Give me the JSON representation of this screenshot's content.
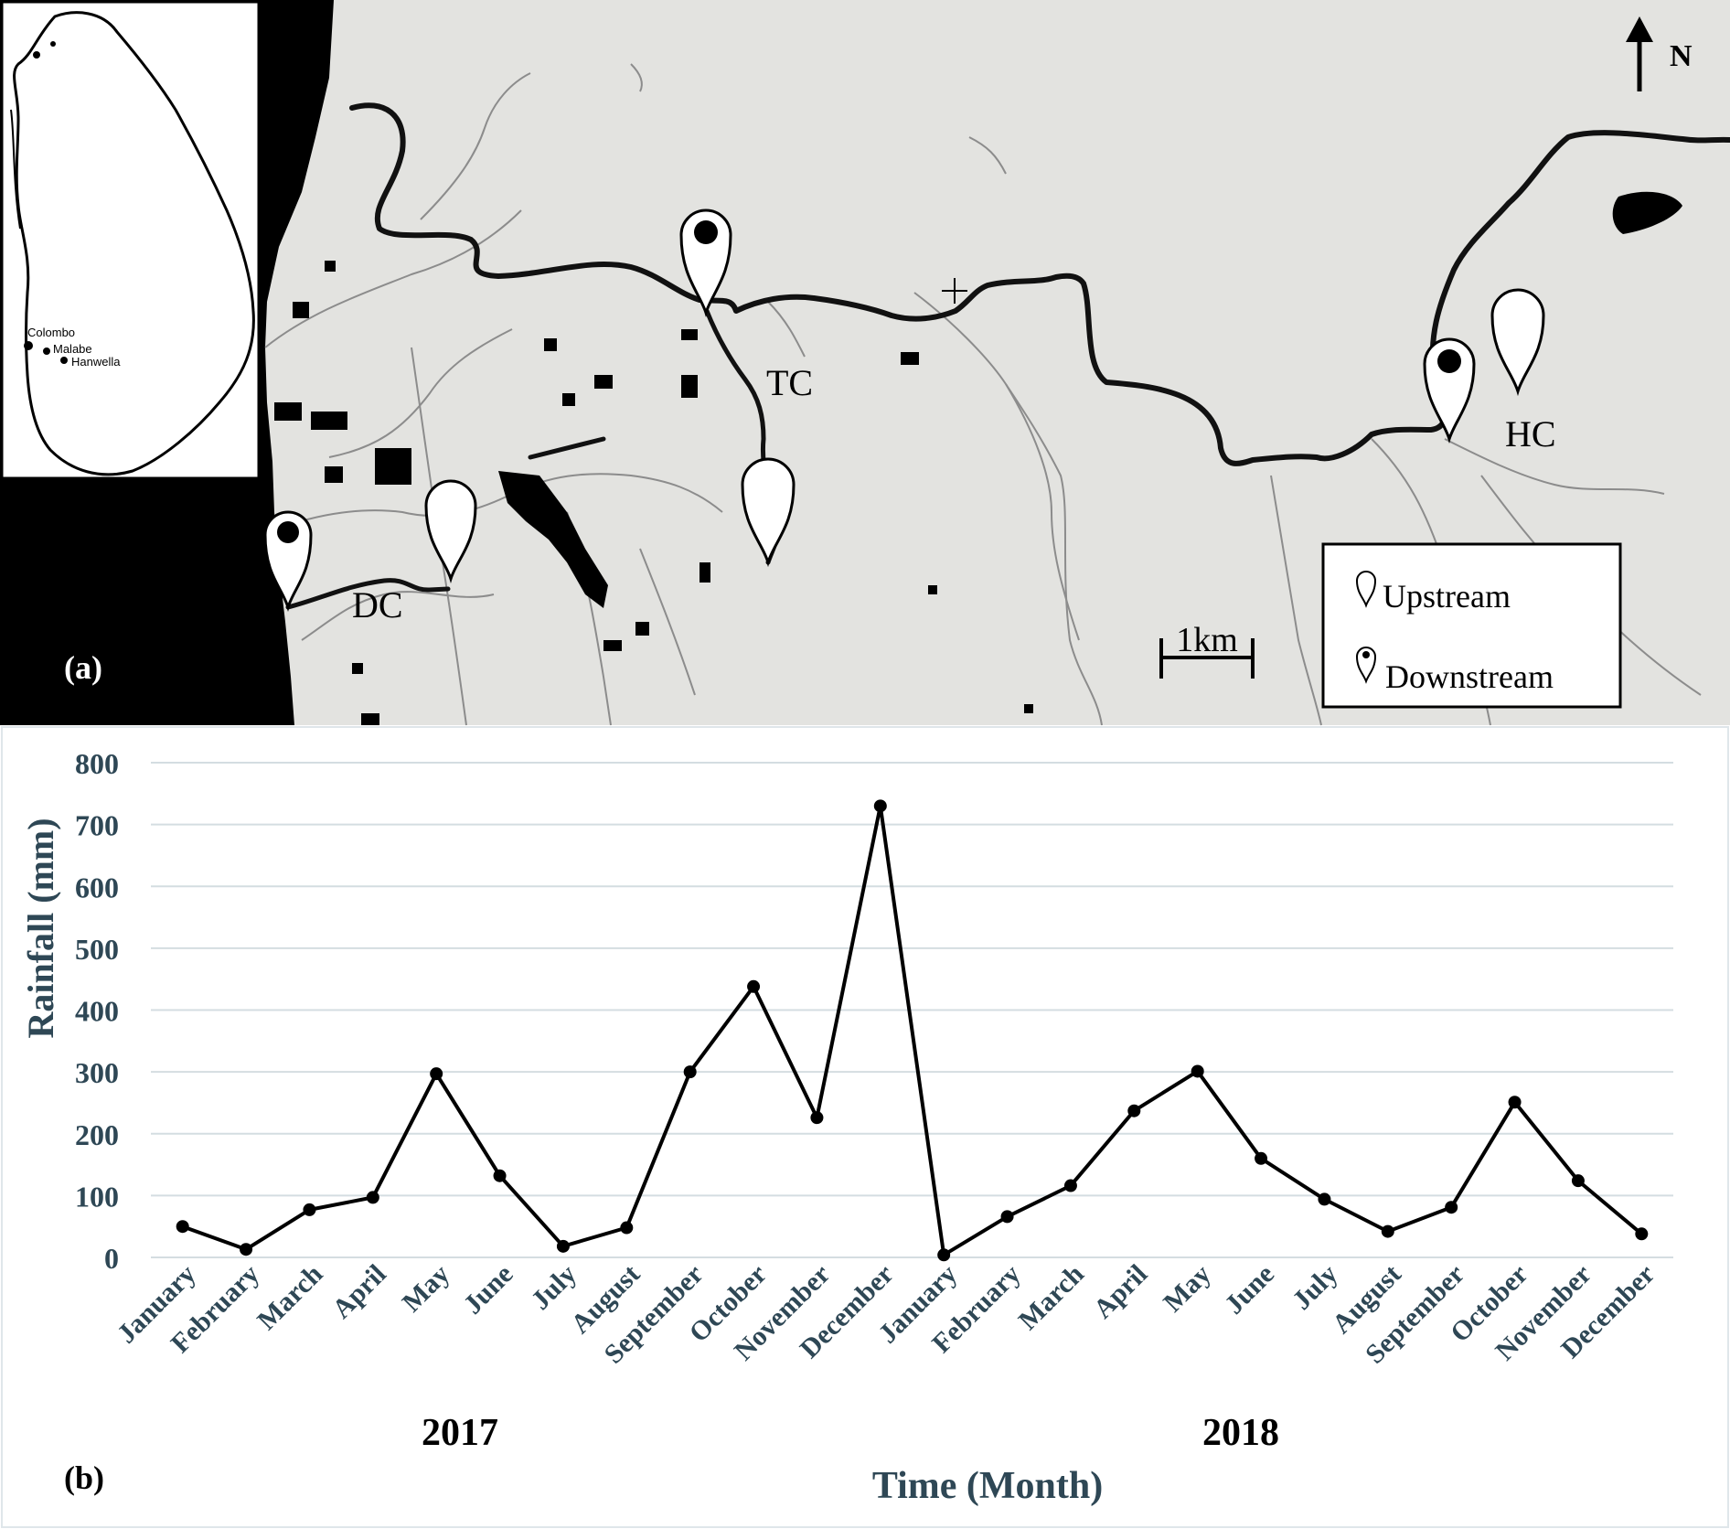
{
  "map": {
    "panel_label": "(a)",
    "north_label": "N",
    "scale_label": "1km",
    "sites": {
      "dc": "DC",
      "tc": "TC",
      "hc": "HC"
    },
    "legend": {
      "upstream": "Upstream",
      "downstream": "Downstream"
    },
    "inset": {
      "colombo": "Colombo",
      "malabe": "Malabe",
      "hanwella": "Hanwella"
    },
    "colors": {
      "land": "#e3e3e0",
      "water": "#000000",
      "river": "#111111",
      "stream": "#8c8c8c"
    }
  },
  "chart": {
    "panel_label": "(b)",
    "xlabel": "Time (Month)",
    "ylabel": "Rainfall (mm)",
    "year_labels": [
      "2017",
      "2018"
    ],
    "colors": {
      "axis_text": "#2e4755",
      "line": "#000000",
      "grid": "#d4dde1"
    }
  },
  "chart_data": {
    "type": "line",
    "title": "",
    "xlabel": "Time (Month)",
    "ylabel": "Rainfall (mm)",
    "ylim": [
      0,
      800
    ],
    "yticks": [
      0,
      100,
      200,
      300,
      400,
      500,
      600,
      700,
      800
    ],
    "grid": true,
    "categories": [
      "January",
      "February",
      "March",
      "April",
      "May",
      "June",
      "July",
      "August",
      "September",
      "October",
      "November",
      "December",
      "January",
      "February",
      "March",
      "April",
      "May",
      "June",
      "July",
      "August",
      "September",
      "October",
      "November",
      "December"
    ],
    "groups": [
      {
        "label": "2017",
        "months": 12
      },
      {
        "label": "2018",
        "months": 12
      }
    ],
    "series": [
      {
        "values": [
          50,
          13,
          77,
          97,
          297,
          132,
          18,
          48,
          300,
          438,
          226,
          730,
          4,
          66,
          116,
          237,
          301,
          160,
          94,
          42,
          81,
          251,
          124,
          38
        ]
      }
    ]
  }
}
